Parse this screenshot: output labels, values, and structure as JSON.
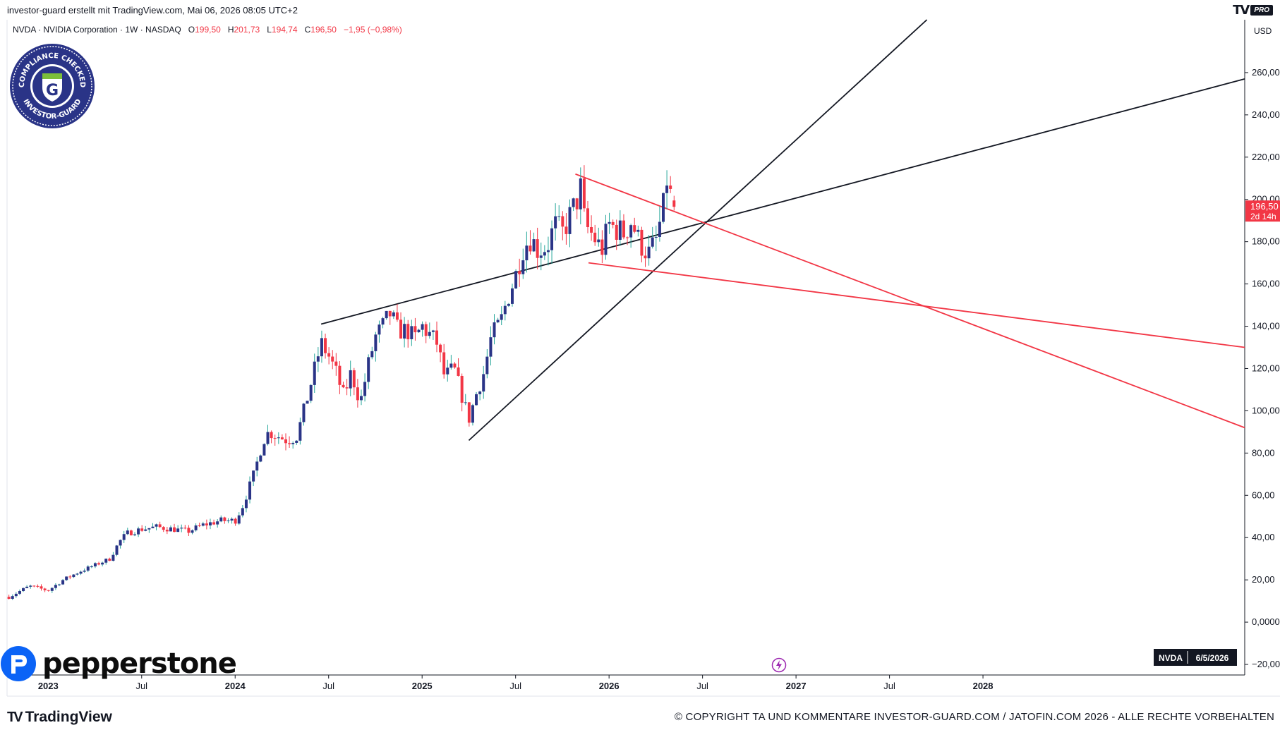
{
  "header": {
    "credit": "investor-guard erstellt mit TradingView.com, Mai 06, 2026 08:05 UTC+2",
    "brand_mark": "TV",
    "brand_pro": "PRO"
  },
  "legend": {
    "symbol": "NVDA · NVIDIA Corporation · 1W · NASDAQ",
    "o_label": "O",
    "o_value": "199,50",
    "h_label": "H",
    "h_value": "201,73",
    "l_label": "L",
    "l_value": "194,74",
    "c_label": "C",
    "c_value": "196,50",
    "change": "−1,95 (−0,98%)"
  },
  "seal": {
    "top_text": "COMPLIANCE CHECKED",
    "bottom_text": "INVESTOR-GUARD",
    "letter": "G"
  },
  "price_tag": {
    "price": "196,50",
    "countdown": "2d 14h"
  },
  "date_tag": {
    "symbol": "NVDA",
    "date": "6/5/2026"
  },
  "currency": "USD",
  "footer": {
    "pepperstone": "pepperstone",
    "tradingview": "TradingView",
    "copyright": "© COPYRIGHT TA UND KOMMENTARE INVESTOR-GUARD.COM / JATOFIN.COM 2026 - ALLE RECHTE VORBEHALTEN"
  },
  "colors": {
    "up": "#2a3487",
    "down": "#f23645",
    "up_wick": "#26a69a",
    "support_lines": "#131722",
    "wedge_lines": "#f23645"
  },
  "icons": [
    "compliance-seal-icon",
    "pepperstone-logo-icon",
    "tradingview-logo-icon",
    "lightning-icon"
  ],
  "chart_data": {
    "type": "candlestick",
    "symbol": "NVDA",
    "interval": "1W",
    "y_axis": {
      "ticks": [
        -20,
        0,
        20,
        40,
        60,
        80,
        100,
        120,
        140,
        160,
        180,
        200,
        220,
        240,
        260
      ],
      "tick_labels": [
        "−20,00",
        "0,0000",
        "20,00",
        "40,00",
        "60,00",
        "80,00",
        "100,00",
        "120,00",
        "140,00",
        "160,00",
        "180,00",
        "200,00",
        "220,00",
        "240,00",
        "260,00"
      ],
      "ylim": [
        -25,
        285
      ]
    },
    "x_axis": {
      "ticks": [
        2023.0,
        2023.5,
        2024.0,
        2024.5,
        2025.0,
        2025.5,
        2026.0,
        2026.5,
        2027.0,
        2027.5,
        2028.0
      ],
      "tick_labels": [
        "2023",
        "Jul",
        "2024",
        "Jul",
        "2025",
        "Jul",
        "2026",
        "Jul",
        "2027",
        "Jul",
        "2028"
      ],
      "xlim": [
        2022.78,
        2029.4
      ]
    },
    "price_path": [
      [
        2022.79,
        12
      ],
      [
        2022.9,
        17
      ],
      [
        2023.0,
        15
      ],
      [
        2023.08,
        20
      ],
      [
        2023.17,
        24
      ],
      [
        2023.25,
        27
      ],
      [
        2023.33,
        30
      ],
      [
        2023.38,
        38
      ],
      [
        2023.42,
        42
      ],
      [
        2023.5,
        44
      ],
      [
        2023.58,
        45
      ],
      [
        2023.67,
        44
      ],
      [
        2023.75,
        43
      ],
      [
        2023.83,
        46
      ],
      [
        2023.92,
        48
      ],
      [
        2024.0,
        48
      ],
      [
        2024.04,
        55
      ],
      [
        2024.1,
        70
      ],
      [
        2024.15,
        86
      ],
      [
        2024.18,
        90
      ],
      [
        2024.23,
        88
      ],
      [
        2024.28,
        86
      ],
      [
        2024.33,
        88
      ],
      [
        2024.38,
        104
      ],
      [
        2024.42,
        118
      ],
      [
        2024.46,
        132
      ],
      [
        2024.5,
        126
      ],
      [
        2024.54,
        118
      ],
      [
        2024.58,
        107
      ],
      [
        2024.62,
        118
      ],
      [
        2024.67,
        104
      ],
      [
        2024.71,
        121
      ],
      [
        2024.75,
        135
      ],
      [
        2024.79,
        140
      ],
      [
        2024.83,
        146
      ],
      [
        2024.87,
        138
      ],
      [
        2024.92,
        138
      ],
      [
        2024.96,
        134
      ],
      [
        2025.0,
        140
      ],
      [
        2025.04,
        136
      ],
      [
        2025.08,
        132
      ],
      [
        2025.12,
        116
      ],
      [
        2025.17,
        120
      ],
      [
        2025.21,
        108
      ],
      [
        2025.25,
        96
      ],
      [
        2025.29,
        108
      ],
      [
        2025.33,
        118
      ],
      [
        2025.37,
        135
      ],
      [
        2025.42,
        142
      ],
      [
        2025.46,
        154
      ],
      [
        2025.5,
        164
      ],
      [
        2025.54,
        177
      ],
      [
        2025.58,
        182
      ],
      [
        2025.62,
        176
      ],
      [
        2025.67,
        178
      ],
      [
        2025.71,
        188
      ],
      [
        2025.75,
        184
      ],
      [
        2025.79,
        192
      ],
      [
        2025.83,
        200
      ],
      [
        2025.85,
        206
      ],
      [
        2025.87,
        188
      ],
      [
        2025.92,
        182
      ],
      [
        2025.96,
        176
      ],
      [
        2026.0,
        188
      ],
      [
        2026.04,
        186
      ],
      [
        2026.08,
        184
      ],
      [
        2026.12,
        190
      ],
      [
        2026.16,
        180
      ],
      [
        2026.21,
        174
      ],
      [
        2026.25,
        180
      ],
      [
        2026.29,
        196
      ],
      [
        2026.31,
        210
      ],
      [
        2026.33,
        201
      ],
      [
        2026.35,
        196.5
      ]
    ],
    "trendlines": [
      {
        "name": "upper support",
        "color": "#131722",
        "x1": 2024.46,
        "y1": 141,
        "x2": 2029.4,
        "y2": 257
      },
      {
        "name": "rising support",
        "color": "#131722",
        "x1": 2025.25,
        "y1": 86,
        "x2": 2027.7,
        "y2": 285
      },
      {
        "name": "wedge upper",
        "color": "#f23645",
        "x1": 2025.82,
        "y1": 212,
        "x2": 2029.4,
        "y2": 92
      },
      {
        "name": "wedge lower",
        "color": "#f23645",
        "x1": 2025.89,
        "y1": 170,
        "x2": 2029.4,
        "y2": 130
      }
    ],
    "last_price": 196.5,
    "last_change": -1.95,
    "last_change_pct": -0.98,
    "ohlc_last": {
      "open": 199.5,
      "high": 201.73,
      "low": 194.74,
      "close": 196.5
    }
  }
}
